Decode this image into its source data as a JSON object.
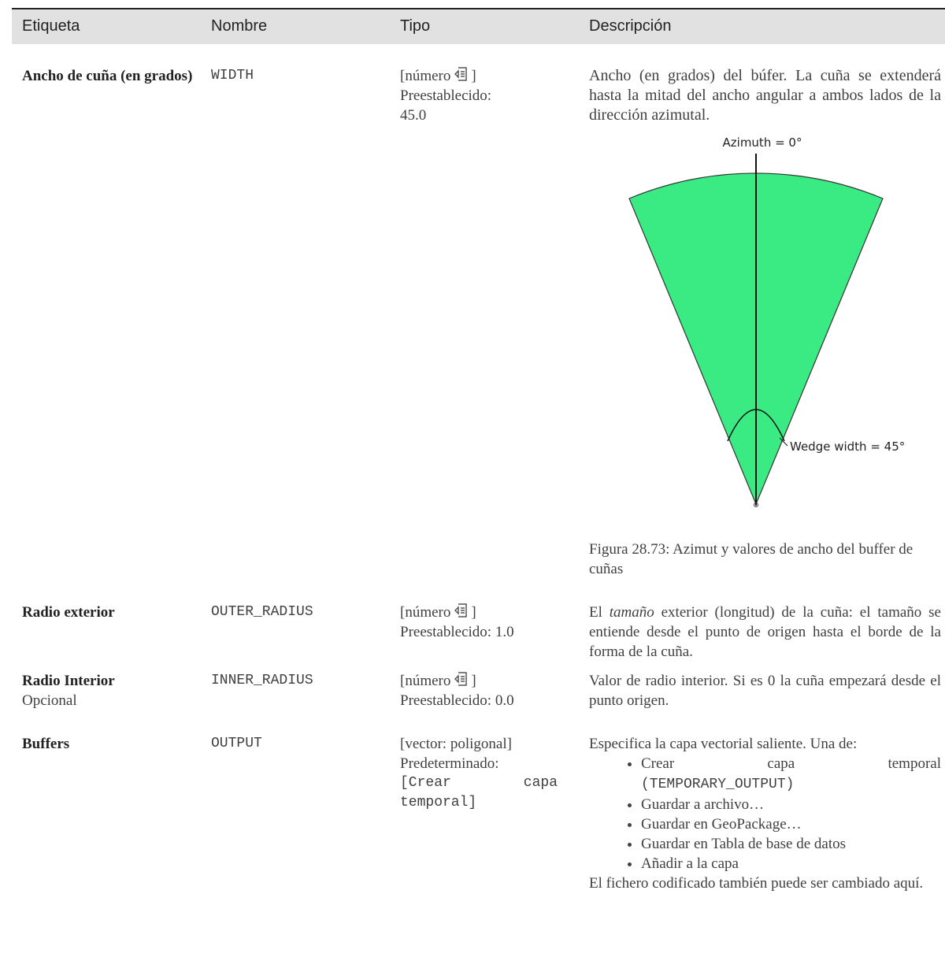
{
  "table": {
    "headers": [
      "Etiqueta",
      "Nombre",
      "Tipo",
      "Descripción"
    ],
    "rows": [
      {
        "label": "Ancho de cuña (en grados)",
        "name": "WIDTH",
        "type": "[número",
        "type_close": "]",
        "type_lines": [
          "Preestablecido:",
          "45.0"
        ],
        "description": "Ancho (en grados) del búfer. La cuña se extenderá hasta la mitad del ancho angular a ambos lados de la dirección azimutal.",
        "figure": {
          "azimuth_label": "Azimuth = 0°",
          "width_label": "Wedge width = 45°",
          "caption": "Figura 28.73: Azimut y valores de ancho del buffer de cuñas"
        }
      },
      {
        "label": "Radio exterior",
        "name": "OUTER_RADIUS",
        "type": "[número",
        "type_close": "]",
        "type_lines": [
          "Preestablecido: 1.0"
        ],
        "description_parts": [
          "El ",
          "tamaño",
          " exterior (longitud) de la cuña: el tamaño se entiende desde el punto de origen hasta el borde de la forma de la cuña."
        ]
      },
      {
        "label": "Radio Interior",
        "sublabel": "Opcional",
        "name": "INNER_RADIUS",
        "type": "[número",
        "type_close": "]",
        "type_lines": [
          "Preestablecido: 0.0"
        ],
        "description": "Valor de radio interior. Si es 0 la cuña empezará desde el punto origen."
      },
      {
        "label": "Buffers",
        "name": "OUTPUT",
        "type": "[vector: poligonal]",
        "type_lines": [
          "Predeterminado:"
        ],
        "type_code": "[Crear capa temporal]",
        "description": "Especifica la capa vectorial saliente. Una de:",
        "options": [
          {
            "text": "Crear capa temporal",
            "code": "(TEMPORARY_OUTPUT)"
          },
          {
            "text": "Guardar a archivo…"
          },
          {
            "text": "Guardar en GeoPackage…"
          },
          {
            "text": "Guardar en Tabla de base de datos"
          },
          {
            "text": "Añadir a la capa"
          }
        ],
        "note": "El fichero codificado también puede ser cambiado aquí."
      }
    ]
  }
}
